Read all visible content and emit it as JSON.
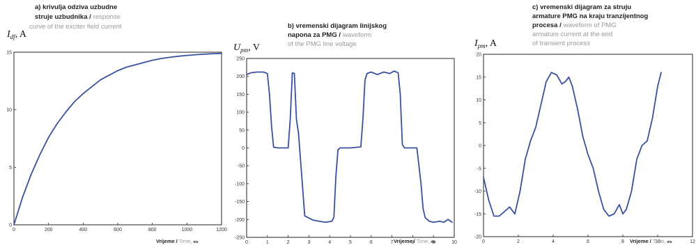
{
  "chart_data": [
    {
      "type": "line",
      "caption_bold": [
        "a) krivulja odziva uzbudne",
        "struje uzbudnika /"
      ],
      "caption_grey": [
        "response",
        "curve of the exciter field current"
      ],
      "ylabel": "I",
      "ylabel_sub": "df",
      "ylabel_unit": ", A",
      "xlabel_bold": "Vrijeme /",
      "xlabel_grey": "Time,",
      "xlabel_unit": "ms",
      "xlim": [
        0,
        1200
      ],
      "ylim": [
        0,
        15
      ],
      "xticks": [
        0,
        200,
        400,
        600,
        800,
        1000,
        1200
      ],
      "yticks": [
        0,
        5,
        10,
        15
      ],
      "series": [
        {
          "x": [
            0,
            50,
            100,
            150,
            200,
            250,
            300,
            350,
            400,
            450,
            500,
            550,
            600,
            650,
            700,
            750,
            800,
            850,
            900,
            950,
            1000,
            1050,
            1100,
            1150,
            1200
          ],
          "y": [
            0,
            2.4,
            4.4,
            6.1,
            7.6,
            8.8,
            9.8,
            10.7,
            11.4,
            12.0,
            12.6,
            13.0,
            13.4,
            13.7,
            13.9,
            14.1,
            14.3,
            14.45,
            14.55,
            14.65,
            14.72,
            14.78,
            14.83,
            14.87,
            14.9
          ]
        }
      ]
    },
    {
      "type": "line",
      "caption_bold": [
        "b) vremenski dijagram linijskog",
        "napona za PMG /"
      ],
      "caption_grey": [
        "waveform",
        "of the PMG line voltage"
      ],
      "ylabel": "U",
      "ylabel_sub": "pm",
      "ylabel_unit": ", V",
      "xlabel_bold": "Vrijeme /",
      "xlabel_grey": "Time,",
      "xlabel_unit": "ms",
      "xlim": [
        0,
        10
      ],
      "ylim": [
        -250,
        250
      ],
      "xticks": [
        0,
        1,
        2,
        3,
        4,
        5,
        6,
        7,
        8,
        9,
        10
      ],
      "yticks": [
        -250,
        -200,
        -150,
        -100,
        -50,
        0,
        50,
        100,
        150,
        200,
        250
      ],
      "series": [
        {
          "x": [
            0,
            0.2,
            0.5,
            0.8,
            1.0,
            1.1,
            1.2,
            1.3,
            1.5,
            2.0,
            2.1,
            2.2,
            2.3,
            2.4,
            2.5,
            2.8,
            3.2,
            3.5,
            3.8,
            4.1,
            4.2,
            4.3,
            4.4,
            4.5,
            4.6,
            5.0,
            5.5,
            5.6,
            5.7,
            5.8,
            6.0,
            6.3,
            6.6,
            6.9,
            7.1,
            7.3,
            7.4,
            7.5,
            7.6,
            7.8,
            8.2,
            8.4,
            8.5,
            8.6,
            8.7,
            8.8,
            9.0,
            9.3,
            9.5,
            9.7,
            9.9
          ],
          "y": [
            205,
            210,
            212,
            212,
            208,
            150,
            60,
            2,
            0,
            0,
            80,
            210,
            208,
            80,
            40,
            -190,
            -202,
            -205,
            -208,
            -205,
            -195,
            -80,
            -5,
            0,
            0,
            0,
            3,
            80,
            190,
            208,
            212,
            205,
            212,
            208,
            215,
            210,
            150,
            10,
            0,
            0,
            0,
            -100,
            -170,
            -195,
            -200,
            -205,
            -208,
            -205,
            -208,
            -200,
            -208
          ]
        }
      ]
    },
    {
      "type": "line",
      "caption_bold": [
        "c) vremenski dijagram za struju",
        "armature PMG na kraju tranzijentnog",
        "procesa /"
      ],
      "caption_grey": [
        "waveform of PMG",
        "armature current at the end",
        "of transient process"
      ],
      "ylabel": "I",
      "ylabel_sub": "pm",
      "ylabel_unit": ", A",
      "xlabel_bold": "Vrijeme /",
      "xlabel_grey": "Time,",
      "xlabel_unit": "ms",
      "xlim": [
        0,
        12
      ],
      "ylim": [
        -20,
        20
      ],
      "xticks": [
        0,
        2,
        4,
        6,
        8,
        10,
        12
      ],
      "yticks": [
        -20,
        -15,
        -10,
        -5,
        0,
        5,
        10,
        15,
        20
      ],
      "series": [
        {
          "x": [
            0,
            0.3,
            0.6,
            0.9,
            1.2,
            1.5,
            1.8,
            2.1,
            2.4,
            2.7,
            3.0,
            3.3,
            3.6,
            3.9,
            4.2,
            4.5,
            4.7,
            4.9,
            5.1,
            5.4,
            5.7,
            6.0,
            6.3,
            6.6,
            6.9,
            7.2,
            7.5,
            7.8,
            8.0,
            8.2,
            8.5,
            8.8,
            9.1,
            9.4,
            9.7,
            10.0,
            10.2
          ],
          "y": [
            -7,
            -12,
            -15.5,
            -15.5,
            -14.5,
            -13.5,
            -15,
            -10,
            -3,
            1,
            4,
            9,
            14,
            16,
            15.5,
            13.5,
            14,
            15,
            13,
            8,
            2,
            -2,
            -5,
            -10,
            -14,
            -15.5,
            -15,
            -13,
            -15,
            -14,
            -10,
            -3,
            0,
            1,
            6,
            13,
            16
          ]
        }
      ]
    }
  ]
}
